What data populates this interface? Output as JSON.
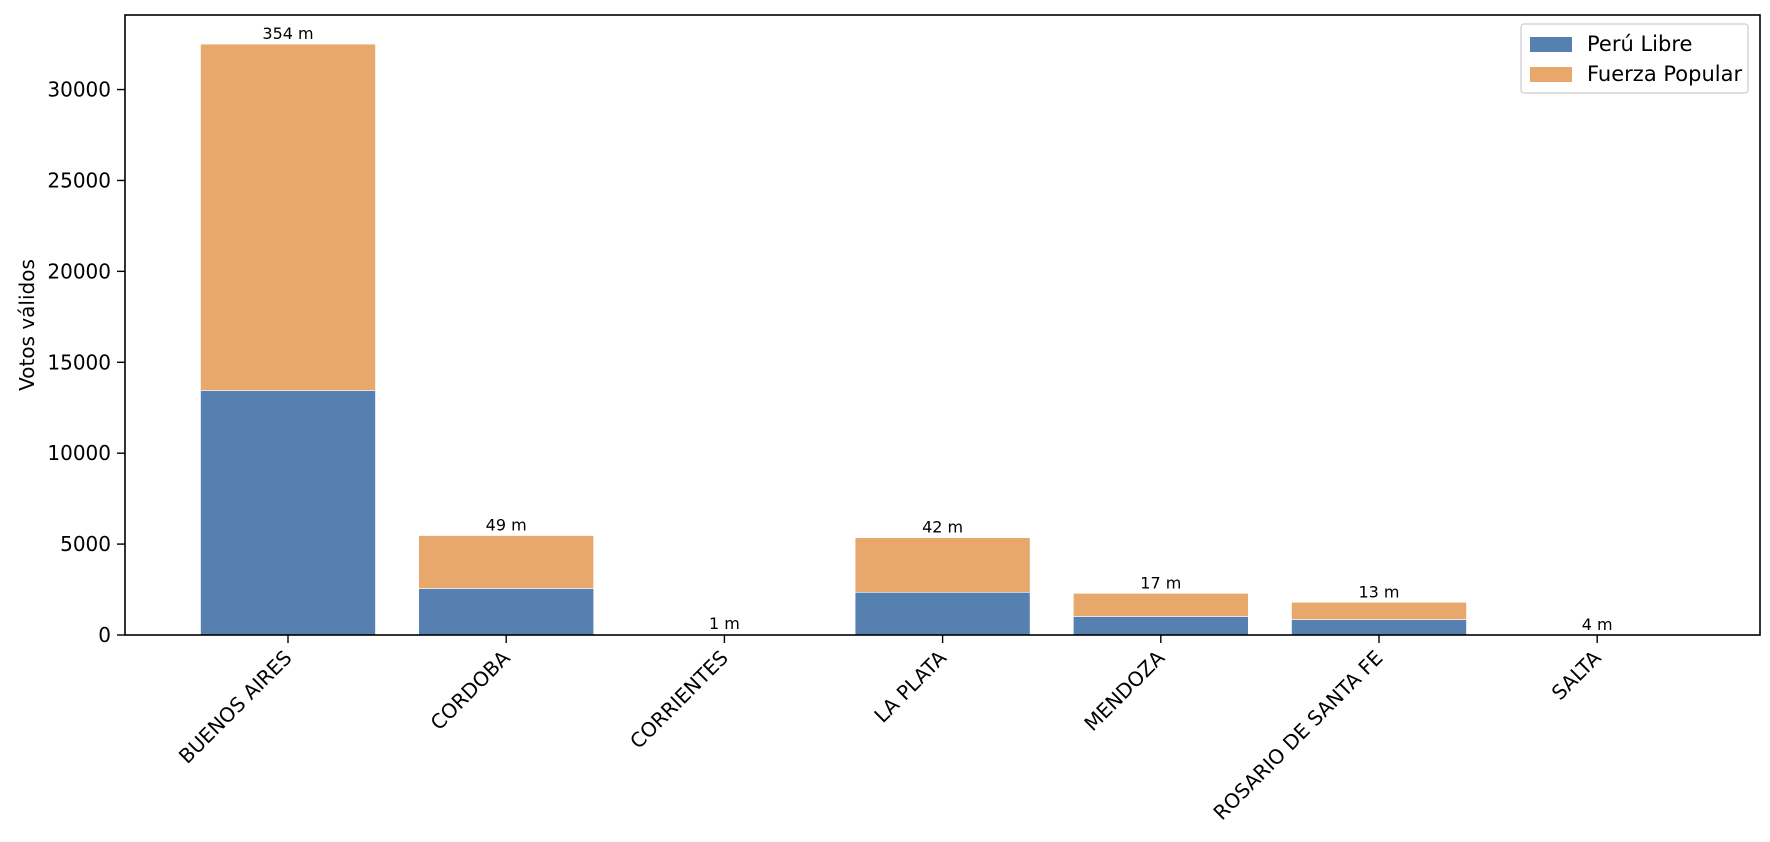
{
  "chart_data": {
    "type": "bar",
    "stacked": true,
    "title": "",
    "xlabel": "",
    "ylabel": "Votos válidos",
    "ylim": [
      0,
      34100
    ],
    "yticks": [
      "0",
      "5000",
      "10000",
      "15000",
      "20000",
      "25000",
      "30000"
    ],
    "categories": [
      "BUENOS AIRES",
      "CORDOBA",
      "CORRIENTES",
      "LA PLATA",
      "MENDOZA",
      "ROSARIO DE SANTA FE",
      "SALTA"
    ],
    "series": [
      {
        "name": "Perú Libre",
        "color": "#5580b0",
        "values": [
          13450,
          2560,
          20,
          2350,
          1020,
          850,
          5
        ]
      },
      {
        "name": "Fuerza Popular",
        "color": "#e8a86c",
        "values": [
          19050,
          2910,
          25,
          3000,
          1270,
          950,
          5
        ]
      }
    ],
    "bar_labels": [
      "354 m",
      "49 m",
      "1 m",
      "42 m",
      "17 m",
      "13 m",
      "4 m"
    ],
    "legend": {
      "position": "top-right"
    },
    "grid": false
  }
}
